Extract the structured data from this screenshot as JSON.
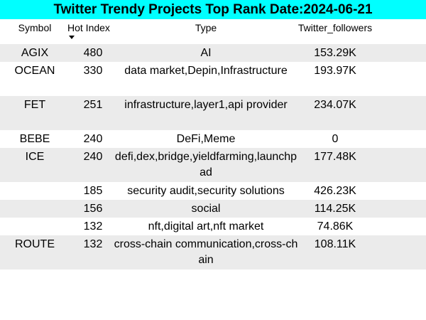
{
  "title": "Twitter Trendy Projects Top Rank Date:2024-06-21",
  "colors": {
    "title_background": "#00ffff",
    "stripe_background": "#ebebeb"
  },
  "columns": {
    "symbol": "Symbol",
    "hot_index": "Hot Index",
    "type": "Type",
    "twitter_followers": "Twitter_followers"
  },
  "sort_indicator": "sort-descending-icon",
  "rows": [
    {
      "symbol": "AGIX",
      "hot_index": "480",
      "type": "AI",
      "twitter_followers": "153.29K"
    },
    {
      "symbol": "OCEAN",
      "hot_index": "330",
      "type": "data market,Depin,Infrastructure",
      "twitter_followers": "193.97K"
    },
    {
      "symbol": "FET",
      "hot_index": "251",
      "type": "infrastructure,layer1,api provider",
      "twitter_followers": "234.07K"
    },
    {
      "symbol": "BEBE",
      "hot_index": "240",
      "type": "DeFi,Meme",
      "twitter_followers": "0"
    },
    {
      "symbol": "ICE",
      "hot_index": "240",
      "type": "defi,dex,bridge,yieldfarming,launchpad",
      "twitter_followers": "177.48K"
    },
    {
      "symbol": "",
      "hot_index": "185",
      "type": "security audit,security solutions",
      "twitter_followers": "426.23K"
    },
    {
      "symbol": "",
      "hot_index": "156",
      "type": "social",
      "twitter_followers": "114.25K"
    },
    {
      "symbol": "",
      "hot_index": "132",
      "type": "nft,digital art,nft market",
      "twitter_followers": "74.86K"
    },
    {
      "symbol": "ROUTE",
      "hot_index": "132",
      "type": "cross-chain communication,cross-chain",
      "twitter_followers": "108.11K"
    }
  ]
}
